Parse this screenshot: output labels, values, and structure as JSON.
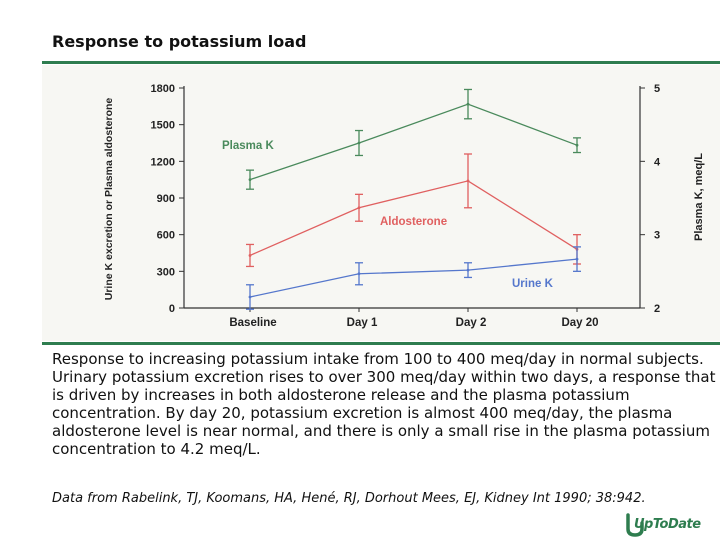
{
  "header": {
    "title": "Response to potassium load"
  },
  "chart_data": {
    "type": "line",
    "title": "Response to potassium load",
    "categories": [
      "Baseline",
      "Day 1",
      "Day 2",
      "Day 20"
    ],
    "ylabel_left": "Urine K excretion or Plasma aldosterone",
    "ylabel_right": "Plasma K, meq/L",
    "ylim_left": [
      0,
      1800
    ],
    "yticks_left": [
      0,
      300,
      600,
      900,
      1200,
      1500,
      1800
    ],
    "ytick_labels_left": [
      "0",
      "300",
      "600",
      "900",
      "1200",
      "1500",
      "1800"
    ],
    "ylim_right": [
      2,
      5
    ],
    "yticks_right": [
      2,
      3,
      4,
      5
    ],
    "ytick_labels_right": [
      "2",
      "3",
      "4",
      "5"
    ],
    "series": [
      {
        "name": "Plasma K",
        "axis": "right",
        "color": "#4a8a5c",
        "values": [
          3.75,
          4.25,
          4.78,
          4.22
        ],
        "error": [
          0.13,
          0.17,
          0.2,
          0.1
        ]
      },
      {
        "name": "Aldosterone",
        "axis": "left",
        "color": "#e06060",
        "values": [
          430,
          820,
          1040,
          480
        ],
        "error": [
          90,
          110,
          220,
          120
        ]
      },
      {
        "name": "Urine K",
        "axis": "left",
        "color": "#5577cc",
        "values": [
          90,
          280,
          310,
          400
        ],
        "error": [
          100,
          90,
          60,
          100
        ]
      }
    ]
  },
  "caption": "Response to increasing potassium intake from 100 to 400 meq/day in normal subjects. Urinary potassium excretion rises to over 300 meq/day within two days, a response that is driven by increases in both aldosterone release and the plasma potassium concentration. By day 20, potassium excretion is almost 400 meq/day, the plasma aldosterone level is near normal, and there is only a small rise in the plasma potassium concentration to 4.2 meq/L.",
  "source": "Data from Rabelink, TJ, Koomans, HA, Hené, RJ, Dorhout Mees, EJ, Kidney Int 1990; 38:942.",
  "logo": {
    "text": "UpToDate",
    "color": "#2e7d4f",
    "icon": "uptodate-logo-icon"
  }
}
